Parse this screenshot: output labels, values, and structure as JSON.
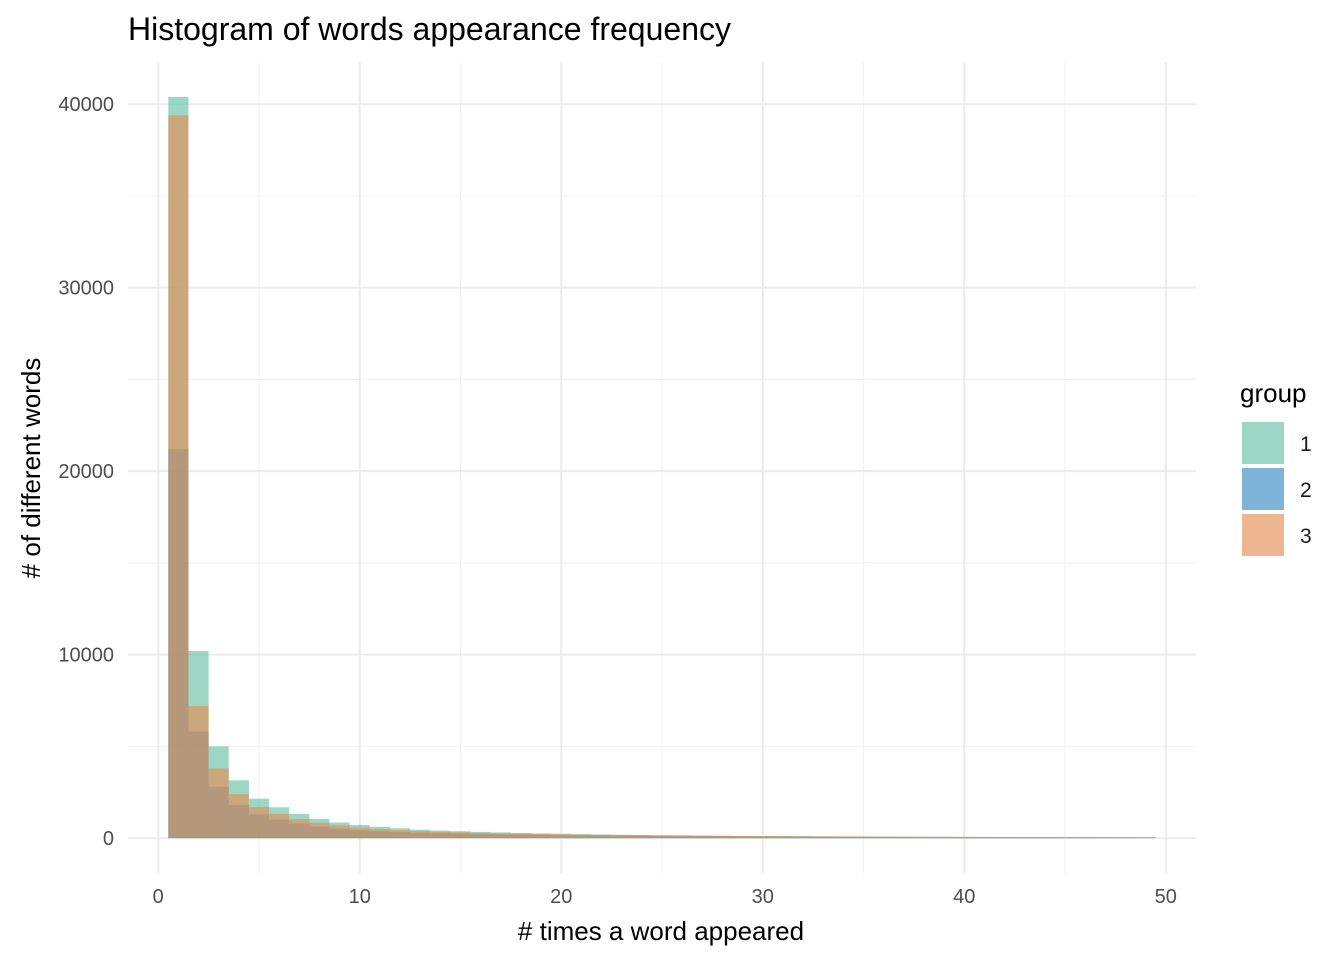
{
  "chart_data": {
    "type": "bar",
    "title": "Histogram of words appearance frequency",
    "xlabel": "# times a word appeared",
    "ylabel": "# of different words",
    "xlim": [
      -1.5,
      51.5
    ],
    "ylim": [
      -1900,
      42300
    ],
    "x_ticks": [
      "0",
      "10",
      "20",
      "30",
      "40",
      "50"
    ],
    "y_ticks": [
      "0",
      "10000",
      "20000",
      "30000",
      "40000"
    ],
    "grid": true,
    "legend": {
      "title": "group",
      "position": "right",
      "labels": [
        "1",
        "2",
        "3"
      ]
    },
    "colors": [
      "#66c2a5",
      "#3a8cc5",
      "#e58f55"
    ],
    "bin_width": 1,
    "x": [
      1,
      2,
      3,
      4,
      5,
      6,
      7,
      8,
      9,
      10,
      11,
      12,
      13,
      14,
      15,
      16,
      17,
      18,
      19,
      20,
      21,
      22,
      23,
      24,
      25,
      26,
      27,
      28,
      29,
      30,
      31,
      32,
      33,
      34,
      35,
      36,
      37,
      38,
      39,
      40,
      41,
      42,
      43,
      44,
      45,
      46,
      47,
      48,
      49
    ],
    "series": [
      {
        "name": "1",
        "values": [
          40400,
          10200,
          5000,
          3150,
          2150,
          1680,
          1320,
          1050,
          850,
          720,
          620,
          540,
          460,
          410,
          380,
          340,
          310,
          280,
          260,
          240,
          220,
          200,
          185,
          170,
          160,
          150,
          140,
          130,
          120,
          115,
          110,
          105,
          100,
          95,
          90,
          85,
          80,
          76,
          72,
          68,
          65,
          62,
          59,
          56,
          53,
          50,
          48,
          46,
          44
        ]
      },
      {
        "name": "2",
        "values": [
          21200,
          5800,
          2800,
          1800,
          1300,
          1000,
          800,
          640,
          520,
          440,
          380,
          330,
          290,
          260,
          240,
          220,
          200,
          185,
          170,
          160,
          150,
          140,
          130,
          120,
          115,
          110,
          105,
          100,
          95,
          90,
          85,
          80,
          76,
          72,
          68,
          65,
          62,
          59,
          56,
          53,
          50,
          48,
          46,
          44,
          42,
          40,
          38,
          36,
          35
        ]
      },
      {
        "name": "3",
        "values": [
          39400,
          7200,
          3800,
          2400,
          1700,
          1320,
          1040,
          840,
          690,
          580,
          500,
          440,
          390,
          350,
          320,
          290,
          265,
          245,
          225,
          210,
          195,
          182,
          170,
          160,
          150,
          141,
          133,
          125,
          118,
          112,
          106,
          100,
          95,
          90,
          86,
          82,
          78,
          74,
          71,
          68,
          65,
          62,
          59,
          57,
          55,
          53,
          51,
          49,
          47
        ]
      }
    ]
  }
}
